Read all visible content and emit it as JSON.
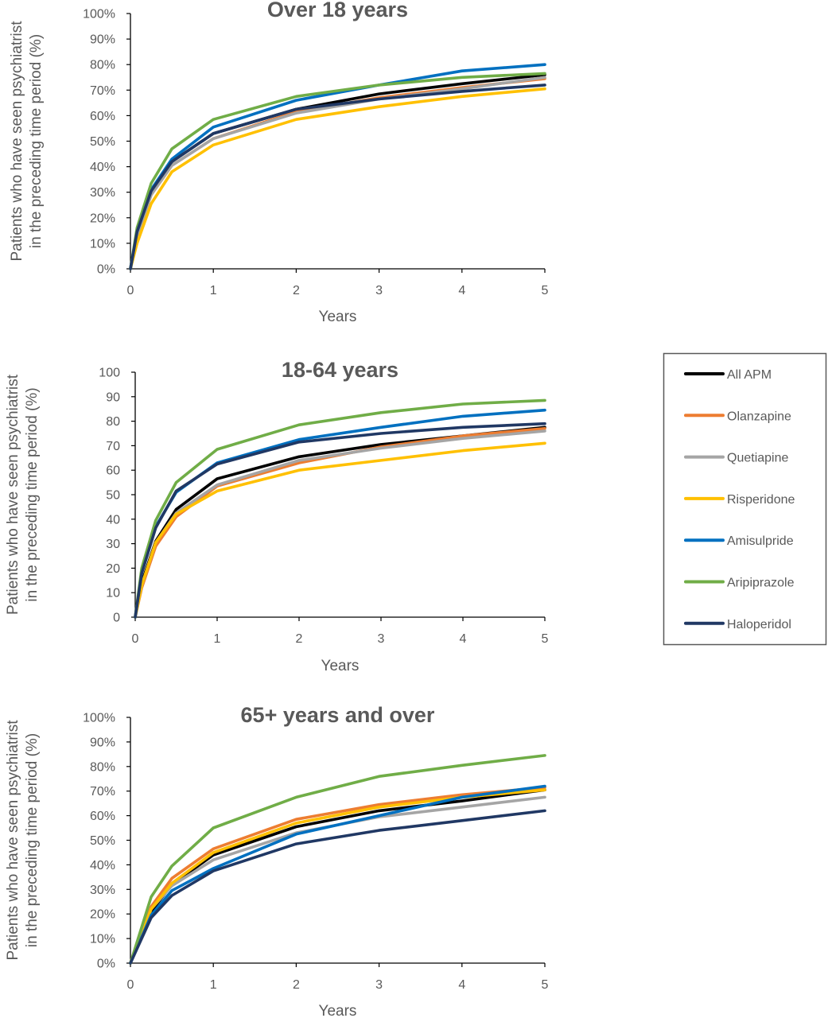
{
  "legend": [
    "All APM",
    "Olanzapine",
    "Quetiapine",
    "Risperidone",
    "Amisulpride",
    "Aripiprazole",
    "Haloperidol"
  ],
  "colors": {
    "All APM": "#000000",
    "Olanzapine": "#ED7D31",
    "Quetiapine": "#A5A5A5",
    "Risperidone": "#FFC000",
    "Amisulpride": "#0070C0",
    "Aripiprazole": "#70AD47",
    "Haloperidol": "#203864"
  },
  "chart_data": [
    {
      "type": "line",
      "title": "Over 18 years",
      "xlabel": "Years",
      "ylabel": "Patients who have seen psychiatrist in the preceding time period (%)",
      "xlim": [
        0,
        5
      ],
      "ylim": [
        0,
        100
      ],
      "x_ticks": [
        "0",
        "1",
        "2",
        "3",
        "4",
        "5"
      ],
      "y_ticks": [
        "0%",
        "10%",
        "20%",
        "30%",
        "40%",
        "50%",
        "60%",
        "70%",
        "80%",
        "90%",
        "100%"
      ],
      "x": [
        0,
        0.08,
        0.25,
        0.5,
        1,
        2,
        3,
        4,
        5
      ],
      "series": [
        {
          "name": "All APM",
          "values": [
            0,
            14,
            30,
            42,
            53,
            62.5,
            68.5,
            72.5,
            76
          ]
        },
        {
          "name": "Olanzapine",
          "values": [
            0,
            13,
            29,
            40.5,
            51,
            61.5,
            67,
            71,
            74.5
          ]
        },
        {
          "name": "Quetiapine",
          "values": [
            0,
            13,
            29,
            40.5,
            51,
            61,
            66.5,
            70.5,
            75
          ]
        },
        {
          "name": "Risperidone",
          "values": [
            0,
            10,
            25.5,
            38,
            48.5,
            58.5,
            63.5,
            67.5,
            70.5
          ]
        },
        {
          "name": "Amisulpride",
          "values": [
            0,
            15,
            31,
            43,
            55.5,
            66,
            72,
            77.5,
            80
          ]
        },
        {
          "name": "Aripiprazole",
          "values": [
            0,
            16,
            33.5,
            47,
            58.5,
            67.5,
            72,
            75,
            76.5
          ]
        },
        {
          "name": "Haloperidol",
          "values": [
            0,
            14.5,
            30.5,
            42,
            53,
            62.5,
            66.5,
            69.5,
            72
          ]
        }
      ]
    },
    {
      "type": "line",
      "title": "18-64 years",
      "xlabel": "Years",
      "ylabel": "Patients who have seen psychiatrist in the preceding time period (%)",
      "xlim": [
        0,
        5
      ],
      "ylim": [
        0,
        100
      ],
      "x_ticks": [
        "0",
        "1",
        "2",
        "3",
        "4",
        "5"
      ],
      "y_ticks": [
        "0",
        "10",
        "20",
        "30",
        "40",
        "50",
        "60",
        "70",
        "80",
        "90",
        "100"
      ],
      "x": [
        0,
        0.08,
        0.25,
        0.5,
        1,
        2,
        3,
        4,
        5
      ],
      "series": [
        {
          "name": "All APM",
          "values": [
            0,
            14,
            31,
            44,
            56.5,
            65.5,
            70.5,
            74,
            77.5
          ]
        },
        {
          "name": "Olanzapine",
          "values": [
            0,
            12,
            29,
            41,
            53.5,
            63,
            69.5,
            74,
            77
          ]
        },
        {
          "name": "Quetiapine",
          "values": [
            0,
            13,
            30.5,
            42.5,
            54,
            64,
            69,
            73,
            76
          ]
        },
        {
          "name": "Risperidone",
          "values": [
            0,
            13,
            30.5,
            42,
            51.5,
            60,
            64,
            68,
            71
          ]
        },
        {
          "name": "Amisulpride",
          "values": [
            0,
            18,
            37,
            51,
            63,
            72.5,
            77.5,
            82,
            84.5
          ]
        },
        {
          "name": "Aripiprazole",
          "values": [
            0,
            20,
            39.5,
            55,
            68.5,
            78.5,
            83.5,
            87,
            88.5
          ]
        },
        {
          "name": "Haloperidol",
          "values": [
            0,
            18,
            36.5,
            51.5,
            62.5,
            71.5,
            75,
            77.5,
            79
          ]
        }
      ]
    },
    {
      "type": "line",
      "title": "65+  years and over",
      "xlabel": "Years",
      "ylabel": "Patients who have seen psychiatrist in the preceding time period (%)",
      "xlim": [
        0,
        5
      ],
      "ylim": [
        0,
        100
      ],
      "x_ticks": [
        "0",
        "1",
        "2",
        "3",
        "4",
        "5"
      ],
      "y_ticks": [
        "0%",
        "10%",
        "20%",
        "30%",
        "40%",
        "50%",
        "60%",
        "70%",
        "80%",
        "90%",
        "100%"
      ],
      "x": [
        0,
        0.25,
        0.5,
        1,
        2,
        3,
        4,
        5
      ],
      "series": [
        {
          "name": "All APM",
          "values": [
            0,
            21,
            32,
            44,
            55.5,
            62,
            66,
            70.5
          ]
        },
        {
          "name": "Olanzapine",
          "values": [
            0,
            23,
            34.5,
            46.5,
            58.5,
            64.5,
            68.5,
            71.5
          ]
        },
        {
          "name": "Quetiapine",
          "values": [
            0,
            22,
            31.5,
            42,
            53,
            59.5,
            63.5,
            67.5
          ]
        },
        {
          "name": "Risperidone",
          "values": [
            0,
            22,
            32.5,
            45,
            57,
            63.5,
            67.5,
            70.5
          ]
        },
        {
          "name": "Amisulpride",
          "values": [
            0,
            19.5,
            29.5,
            38.5,
            52.5,
            60,
            67.5,
            72
          ]
        },
        {
          "name": "Aripiprazole",
          "values": [
            0,
            27,
            39.5,
            55,
            67.5,
            76,
            80.5,
            84.5
          ]
        },
        {
          "name": "Haloperidol",
          "values": [
            0,
            18.5,
            27.5,
            37.5,
            48.5,
            54,
            58,
            62
          ]
        }
      ]
    }
  ]
}
